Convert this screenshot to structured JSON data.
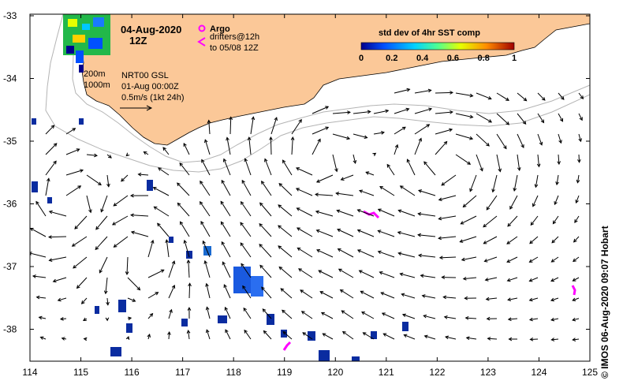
{
  "map": {
    "date": "04-Aug-2020",
    "hour": "12Z",
    "argo_label": "Argo",
    "drifters_line1": "drifters@12h",
    "drifters_line2": "to 05/08 12Z",
    "isobath_shallow": "200m",
    "isobath_deep": "1000m",
    "product_line1": "NRT00 GSL",
    "product_line2": "01-Aug 00:00Z",
    "scale_label": "0.5m/s (1kt 24h)",
    "credit": "© IMOS 06-Aug-2020 09:07 Hobart",
    "colorbar": {
      "title": "std dev of 4hr SST comp",
      "ticks": [
        "0",
        "0.2",
        "0.4",
        "0.6",
        "0.8",
        "1"
      ]
    },
    "x_ticks": [
      "114",
      "115",
      "116",
      "117",
      "118",
      "119",
      "120",
      "121",
      "122",
      "123",
      "124",
      "125"
    ],
    "y_ticks": [
      "-33",
      "-34",
      "-35",
      "-36",
      "-37",
      "-38"
    ],
    "colors": {
      "land": "#fbc898",
      "isobath": "#b4b4b4",
      "argo": "#ff00ff",
      "drifter": "#ff00ff",
      "sst_low": "#0000a0"
    }
  }
}
